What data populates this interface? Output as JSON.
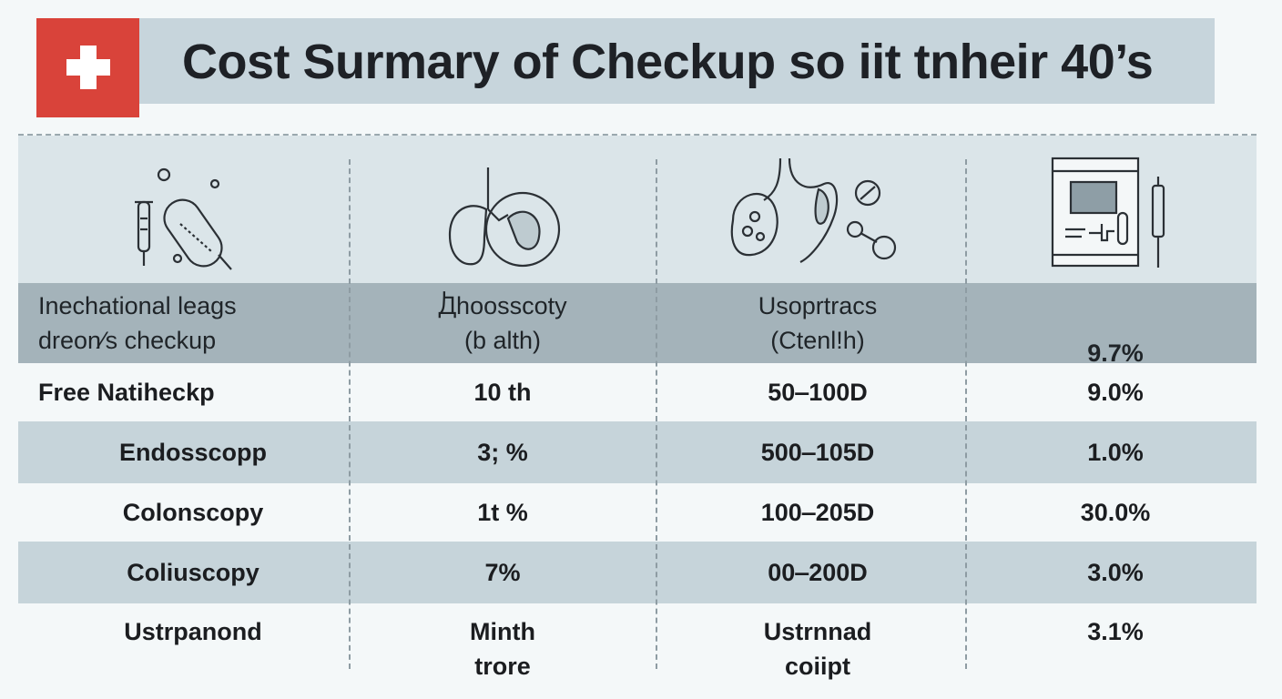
{
  "title": "Cost Surmary of Checkup so iit tnheir  40’s",
  "colors": {
    "accent_red": "#d9433a",
    "header_band": "#a4b3ba",
    "stripe": "#c6d4da",
    "title_bar": "#c7d5dc"
  },
  "icons": [
    "test-tube-capsule-icon",
    "lungs-icon",
    "digestive-organs-icon",
    "medical-monitor-icon"
  ],
  "header": {
    "c1": [
      "Inechational leags",
      "dreon⁄s checkup"
    ],
    "c2": [
      "Ꚁhoosscoty",
      "(b alth)"
    ],
    "c3": [
      "Usoprtracs",
      "(Ctenl!h)"
    ],
    "c4": [
      "9.7%"
    ]
  },
  "rows": [
    {
      "c1": "Free Natiheckp",
      "c2": "10 th",
      "c3": "50‒100D",
      "c4": "9.0%",
      "shaded": false
    },
    {
      "c1": "Endosscopp",
      "c2": "3; %",
      "c3": "500‒105D",
      "c4": "1.0%",
      "shaded": true
    },
    {
      "c1": "Colonscopy",
      "c2": "1t %",
      "c3": "100‒205D",
      "c4": "30.0%",
      "shaded": false
    },
    {
      "c1": "Coliuscopy",
      "c2": "7%",
      "c3": "00‒200D",
      "c4": "3.0%",
      "shaded": true
    },
    {
      "c1": "Ustrpanond",
      "c2": [
        "Minth",
        "trore"
      ],
      "c3": [
        "Ustrnnad",
        "coiipt"
      ],
      "c4": "3.1%",
      "shaded": false
    }
  ]
}
